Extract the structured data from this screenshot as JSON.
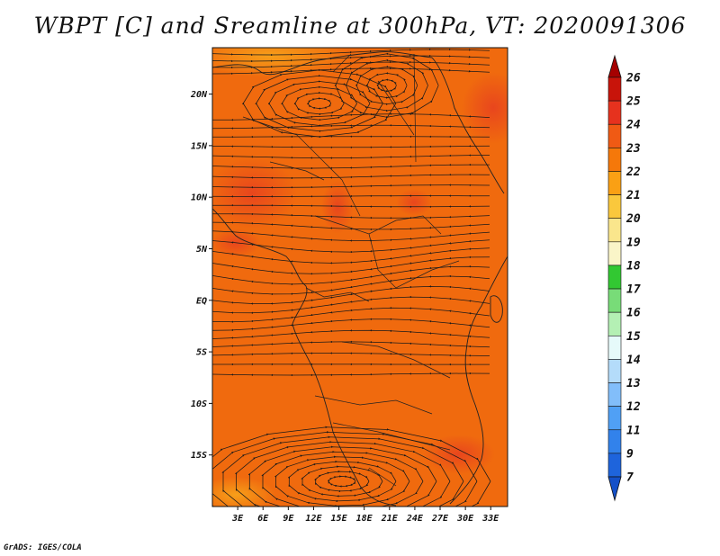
{
  "title": "WBPT [C] and Sreamline at 300hPa, VT: 2020091306",
  "credit": "GrADS: IGES/COLA",
  "map": {
    "x_ticks": [
      {
        "value": 3,
        "label": "3E"
      },
      {
        "value": 6,
        "label": "6E"
      },
      {
        "value": 9,
        "label": "9E"
      },
      {
        "value": 12,
        "label": "12E"
      },
      {
        "value": 15,
        "label": "15E"
      },
      {
        "value": 18,
        "label": "18E"
      },
      {
        "value": 21,
        "label": "21E"
      },
      {
        "value": 24,
        "label": "24E"
      },
      {
        "value": 27,
        "label": "27E"
      },
      {
        "value": 30,
        "label": "30E"
      },
      {
        "value": 33,
        "label": "33E"
      }
    ],
    "y_ticks": [
      {
        "value": 20,
        "label": "20N"
      },
      {
        "value": 15,
        "label": "15N"
      },
      {
        "value": 10,
        "label": "10N"
      },
      {
        "value": 5,
        "label": "5N"
      },
      {
        "value": 0,
        "label": "EQ"
      },
      {
        "value": -5,
        "label": "5S"
      },
      {
        "value": -10,
        "label": "10S"
      },
      {
        "value": -15,
        "label": "15S"
      }
    ],
    "lon_range": [
      0,
      35
    ],
    "lat_range": [
      -20,
      24.5
    ]
  },
  "colorbar": {
    "labels": [
      "26",
      "25",
      "24",
      "23",
      "22",
      "21",
      "20",
      "19",
      "18",
      "17",
      "16",
      "15",
      "14",
      "13",
      "12",
      "11",
      "9",
      "7"
    ],
    "colors": [
      "#a50000",
      "#c8140a",
      "#e6321e",
      "#f05a14",
      "#f5780a",
      "#faa014",
      "#fac83c",
      "#fae68c",
      "#faf5c8",
      "#32c832",
      "#78dc78",
      "#b4f0b4",
      "#e6fafa",
      "#b4dcfa",
      "#82befa",
      "#50a0f5",
      "#3282eb",
      "#1e64dc",
      "#1450c8"
    ]
  }
}
